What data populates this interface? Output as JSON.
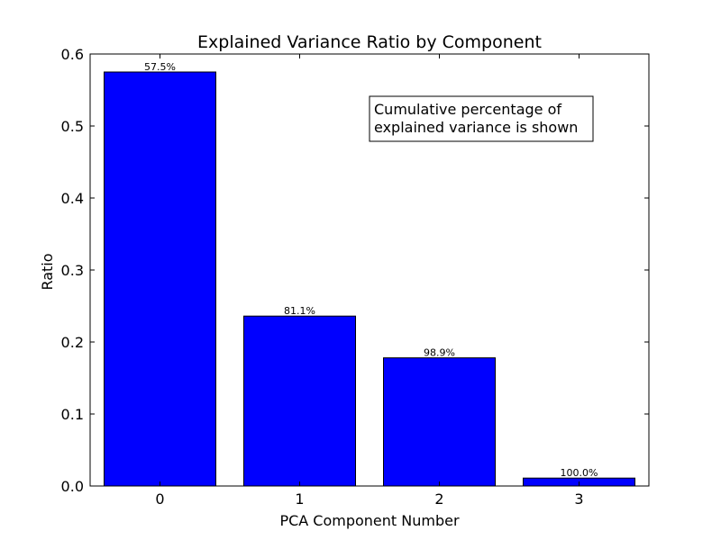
{
  "chart_data": {
    "type": "bar",
    "title": "Explained Variance Ratio by Component",
    "xlabel": "PCA Component Number",
    "ylabel": "Ratio",
    "categories": [
      "0",
      "1",
      "2",
      "3"
    ],
    "values": [
      0.575,
      0.236,
      0.178,
      0.011
    ],
    "data_labels": [
      "57.5%",
      "81.1%",
      "98.9%",
      "100.0%"
    ],
    "ylim": [
      0,
      0.6
    ],
    "yticks": [
      "0.0",
      "0.1",
      "0.2",
      "0.3",
      "0.4",
      "0.5",
      "0.6"
    ],
    "grid": false,
    "bar_color": "#0000ff",
    "annotation": {
      "lines": [
        "Cumulative percentage of",
        "explained variance is shown"
      ],
      "position": "top-right"
    }
  }
}
